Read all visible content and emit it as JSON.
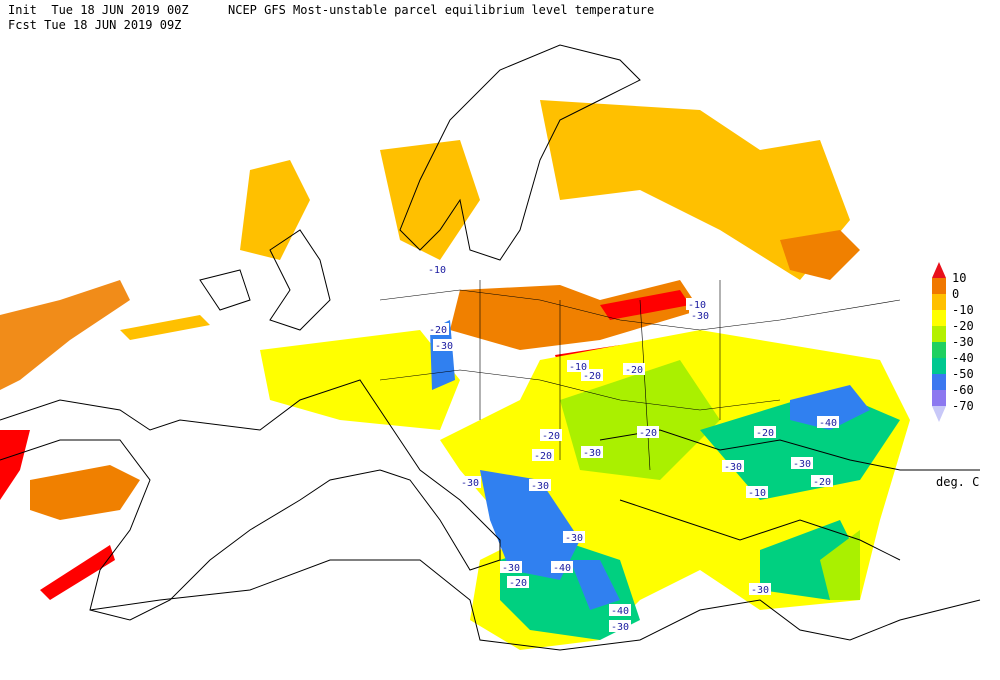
{
  "header": {
    "init": "Init  Tue 18 JUN 2019 00Z",
    "title": "NCEP GFS Most-unstable parcel equilibrium level temperature",
    "forecast": "Fcst Tue 18 JUN 2019 09Z"
  },
  "colorbar": {
    "levels": [
      10,
      0,
      -10,
      -20,
      -30,
      -40,
      -50,
      -60,
      -70
    ],
    "colors": [
      "#e8101a",
      "#f07800",
      "#ffc000",
      "#ffff00",
      "#b4f000",
      "#20d060",
      "#00c890",
      "#3c78f0",
      "#8c78f0",
      "#c8c8f8"
    ],
    "unit": "deg. C"
  },
  "contour_labels": [
    -10,
    -30,
    -20,
    -10,
    -30,
    -20,
    -20,
    -10,
    -20,
    -20,
    -20,
    -30,
    -30,
    -30,
    -30,
    -40,
    -30,
    -20,
    -40,
    -30,
    -40,
    -20,
    -30,
    -30,
    -20,
    -10,
    -30
  ]
}
